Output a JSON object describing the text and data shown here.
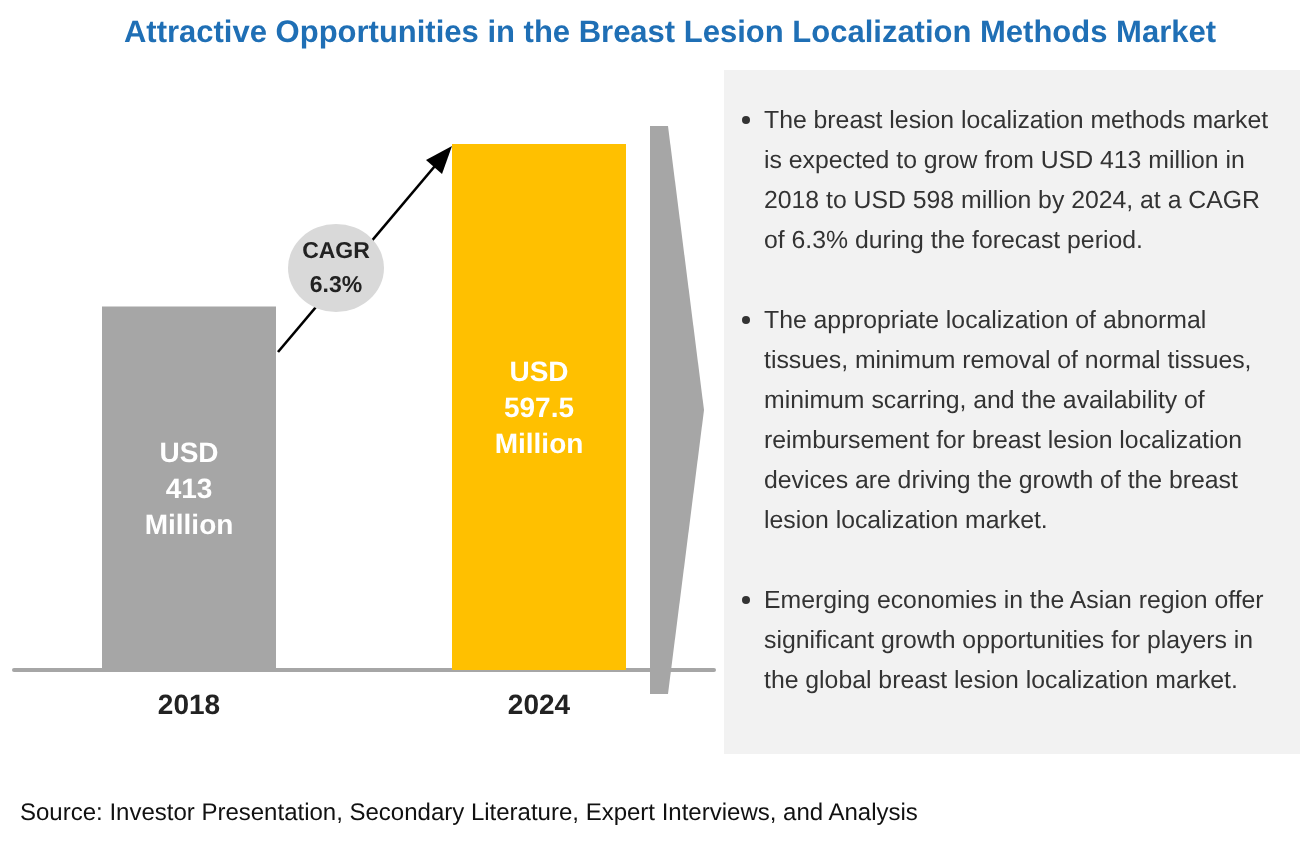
{
  "chart_data": {
    "type": "bar",
    "title": "Attractive Opportunities in the Breast Lesion Localization Methods Market",
    "categories": [
      "2018",
      "2024"
    ],
    "values": [
      413,
      597.5
    ],
    "colors": [
      "#a6a6a6",
      "#ffc000"
    ],
    "value_labels": [
      "USD 413 Million",
      "USD 597.5 Million"
    ],
    "annotations": [
      "CAGR 6.3%",
      "The breast lesion localization methods market is expected to grow from USD 413 million in 2018 to USD 598 million by 2024, at a CAGR of 6.3% during the forecast period.",
      "The appropriate localization of abnormal tissues, minimum removal of normal tissues, minimum scarring, and the availability of reimbursement for breast lesion localization devices are driving the growth of the breast lesion localization market.",
      "Emerging economies in the Asian region offer significant growth opportunities for players in the global breast lesion localization market.",
      "Source: Investor Presentation, Secondary Literature, Expert Interviews, and Analysis"
    ]
  }
}
